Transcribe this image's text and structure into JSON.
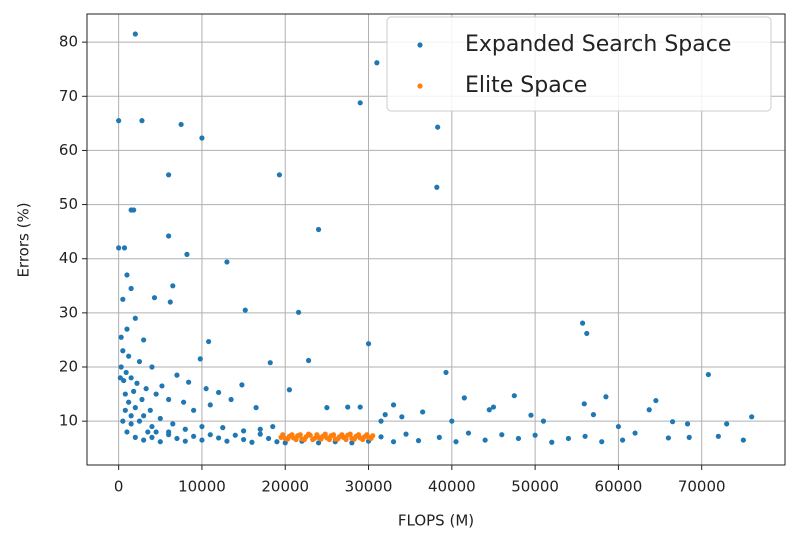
{
  "chart_data": {
    "type": "scatter",
    "xlabel": "FLOPS (M)",
    "ylabel": "Errors (%)",
    "xlim": [
      -3800,
      80000
    ],
    "ylim": [
      1.9,
      85.2
    ],
    "xticks": [
      0,
      10000,
      20000,
      30000,
      40000,
      50000,
      60000,
      70000
    ],
    "yticks": [
      10,
      20,
      30,
      40,
      50,
      60,
      70,
      80
    ],
    "grid": true,
    "legend": "upper right",
    "series": [
      {
        "name": "Expanded Search Space",
        "color": "#1f77b4",
        "x": [
          2000,
          0,
          2800,
          7500,
          10000,
          6000,
          19300,
          31000,
          29000,
          38300,
          38200,
          1500,
          1800,
          0,
          700,
          6000,
          8200,
          24000,
          13000,
          1000,
          6500,
          6200,
          4300,
          500,
          1500,
          15200,
          21600,
          30000,
          10800,
          55700,
          56200,
          70800,
          39300,
          18200,
          22800,
          20500,
          2000,
          300,
          1000,
          3000,
          500,
          1200,
          2500,
          4000,
          900,
          1500,
          600,
          2200,
          3300,
          1800,
          800,
          4500,
          2800,
          1200,
          6000,
          9800,
          7000,
          5200,
          8400,
          10500,
          12000,
          14800,
          13500,
          11000,
          16500,
          9000,
          7800,
          3800,
          1500,
          2500,
          5000,
          4000,
          6500,
          8000,
          10000,
          12500,
          15000,
          17000,
          18500,
          25000,
          27500,
          29000,
          32000,
          33000,
          34000,
          31500,
          36500,
          40000,
          41500,
          44500,
          45000,
          47500,
          49500,
          51000,
          55900,
          57000,
          58500,
          60000,
          63700,
          64500,
          66500,
          68300,
          73000,
          76000,
          75000,
          72000,
          68500,
          66000,
          62000,
          60500,
          58000,
          56000,
          54000,
          52000,
          50000,
          48000,
          46000,
          44000,
          42000,
          40500,
          38500,
          36000,
          34500,
          33000,
          31500,
          2000,
          3000,
          4000,
          5000,
          6000,
          7000,
          8000,
          9000,
          10000,
          11000,
          12000,
          13000,
          14000,
          15000,
          16000,
          17000,
          18000,
          19000,
          20000,
          22000,
          24000,
          26000,
          28000,
          30000,
          1000,
          1500,
          500,
          3500,
          4500,
          6000,
          800,
          300,
          200,
          2000,
          3000
        ],
        "y": [
          81.5,
          65.5,
          65.5,
          64.8,
          62.3,
          55.5,
          55.5,
          76.2,
          68.8,
          64.3,
          53.2,
          49,
          49,
          42,
          42,
          44.2,
          40.8,
          45.4,
          39.4,
          37,
          35,
          32,
          32.8,
          32.5,
          34.5,
          30.5,
          30.1,
          24.3,
          24.7,
          28.1,
          26.2,
          18.6,
          19,
          20.8,
          21.2,
          15.8,
          29,
          25.5,
          27,
          25,
          23,
          22,
          21,
          20,
          19,
          18,
          17.5,
          17,
          16,
          15.5,
          15,
          15,
          14,
          13.5,
          14,
          21.5,
          18.5,
          16.5,
          17.2,
          16,
          15.3,
          16.7,
          14,
          13,
          12.5,
          12,
          13.5,
          12,
          11,
          10,
          10.5,
          9,
          9.5,
          8.5,
          9,
          8.8,
          8.2,
          8.5,
          9,
          12.5,
          12.6,
          12.6,
          11.2,
          13,
          10.8,
          10,
          11.7,
          10,
          14.3,
          12.1,
          12.6,
          14.7,
          11.1,
          10,
          13.2,
          11.2,
          14.5,
          9,
          12.1,
          13.8,
          9.9,
          9.5,
          9.5,
          10.8,
          6.5,
          7.2,
          7,
          6.9,
          7.8,
          6.5,
          6.2,
          7.2,
          6.8,
          6.1,
          7.4,
          6.8,
          7.5,
          6.5,
          7.8,
          6.2,
          7,
          6.4,
          7.6,
          6.2,
          7.1,
          7,
          6.5,
          7,
          6.2,
          7.5,
          6.8,
          6.3,
          7.2,
          6.5,
          7.5,
          6.9,
          6.3,
          7.4,
          6.6,
          6.1,
          7.6,
          6.8,
          6.2,
          6,
          6.3,
          6,
          6.2,
          6,
          6.3,
          8,
          9.5,
          10,
          8,
          8,
          8,
          12,
          20,
          18,
          12.5,
          11
        ]
      },
      {
        "name": "Elite Space",
        "color": "#ff7f0e",
        "x": [
          19500,
          20000,
          20500,
          21000,
          21500,
          22000,
          22500,
          23000,
          23500,
          24000,
          24500,
          25000,
          25500,
          26000,
          26500,
          27000,
          27500,
          28000,
          28500,
          29000,
          29500,
          30000,
          30500,
          19700,
          20300,
          20800,
          21300,
          21800,
          22300,
          22800,
          23300,
          23800,
          24300,
          24800,
          25300,
          25800,
          26300,
          26800,
          27300,
          27800,
          28300,
          28800,
          29300,
          29800,
          30300
        ],
        "y": [
          7.0,
          6.8,
          7.2,
          6.9,
          7.3,
          6.7,
          7.1,
          7.4,
          6.8,
          7.0,
          7.2,
          6.9,
          7.3,
          6.7,
          7.1,
          7.0,
          7.4,
          6.8,
          7.2,
          6.9,
          7.1,
          7.0,
          7.3,
          7.5,
          6.7,
          7.5,
          6.6,
          7.5,
          6.6,
          7.6,
          6.6,
          7.5,
          6.7,
          7.6,
          6.6,
          7.5,
          6.7,
          7.5,
          6.6,
          7.6,
          6.7,
          7.5,
          6.6,
          7.5,
          6.8
        ]
      }
    ]
  }
}
